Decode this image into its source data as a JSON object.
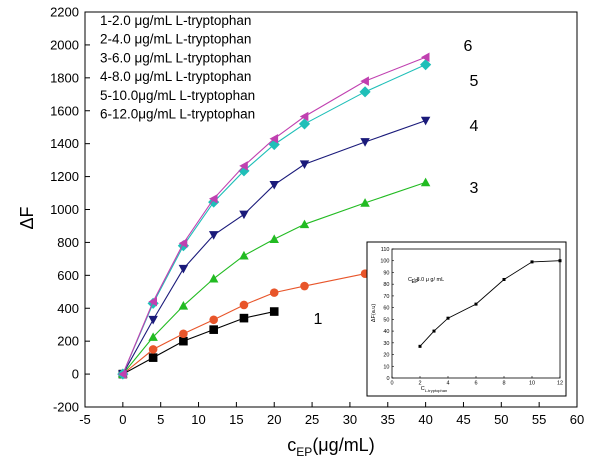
{
  "chart_data": [
    {
      "type": "line",
      "xlabel": {
        "main": "c",
        "sub": "EP",
        "unit": "(μg/mL)"
      },
      "ylabel": "ΔF",
      "xlim": [
        -5,
        60
      ],
      "ylim": [
        -200,
        2200
      ],
      "xticks": [
        "-5",
        "0",
        "5",
        "10",
        "15",
        "20",
        "25",
        "30",
        "35",
        "40",
        "45",
        "50",
        "55",
        "60"
      ],
      "yticks": [
        "-200",
        "0",
        "200",
        "400",
        "600",
        "800",
        "1000",
        "1200",
        "1400",
        "1600",
        "1800",
        "2000",
        "2200"
      ],
      "grid": false,
      "legend_position": "top-left",
      "legend": [
        "1-2.0 μg/mL L-tryptophan",
        "2-4.0 μg/mL L-tryptophan",
        "3-6.0 μg/mL L-tryptophan",
        "4-8.0 μg/mL L-tryptophan",
        "5-10.0μg/mL L-tryptophan",
        "6-12.0μg/mL L-tryptophan"
      ],
      "series": [
        {
          "name": "1",
          "color": "#000000",
          "marker": "square",
          "x": [
            0,
            4,
            8,
            12,
            16,
            20
          ],
          "y": [
            0,
            100,
            200,
            270,
            340,
            380
          ]
        },
        {
          "name": "2",
          "color": "#e8552a",
          "marker": "circle",
          "x": [
            0,
            4,
            8,
            12,
            16,
            20,
            24,
            32
          ],
          "y": [
            0,
            150,
            245,
            330,
            420,
            495,
            535,
            610
          ]
        },
        {
          "name": "3",
          "color": "#22bb22",
          "marker": "triangle-up",
          "x": [
            0,
            4,
            8,
            12,
            16,
            20,
            24,
            32,
            40
          ],
          "y": [
            0,
            225,
            415,
            580,
            720,
            820,
            910,
            1040,
            1165
          ]
        },
        {
          "name": "4",
          "color": "#1a1a7a",
          "marker": "triangle-down",
          "x": [
            0,
            4,
            8,
            12,
            16,
            20,
            24,
            32,
            40
          ],
          "y": [
            0,
            330,
            640,
            845,
            970,
            1150,
            1275,
            1410,
            1540
          ]
        },
        {
          "name": "5",
          "color": "#1fbfb8",
          "marker": "diamond",
          "x": [
            0,
            4,
            8,
            12,
            16,
            20,
            24,
            32,
            40
          ],
          "y": [
            0,
            430,
            780,
            1045,
            1235,
            1395,
            1520,
            1715,
            1880
          ]
        },
        {
          "name": "6",
          "color": "#c040b0",
          "marker": "triangle-left",
          "x": [
            0,
            4,
            8,
            12,
            16,
            20,
            24,
            32,
            40
          ],
          "y": [
            0,
            440,
            795,
            1065,
            1265,
            1430,
            1565,
            1780,
            1925
          ]
        }
      ]
    },
    {
      "type": "line",
      "xlabel": {
        "main": "C",
        "sub": "L-tryptophan"
      },
      "ylabel": "ΔF(a.u)",
      "annotation": "C   : 8.0 μ g/ mL",
      "annotation_sub": "EP",
      "xlim": [
        0,
        12
      ],
      "ylim": [
        0,
        110
      ],
      "xticks": [
        "0",
        "2",
        "4",
        "6",
        "8",
        "10",
        "12"
      ],
      "yticks": [
        "0",
        "10",
        "20",
        "30",
        "40",
        "50",
        "60",
        "70",
        "80",
        "90",
        "100",
        "110"
      ],
      "grid": false,
      "series": [
        {
          "color": "#000000",
          "marker": "square",
          "x": [
            2,
            3,
            4,
            6,
            8,
            10,
            12
          ],
          "y": [
            27,
            40,
            51,
            63,
            84,
            99,
            100
          ]
        }
      ]
    }
  ]
}
